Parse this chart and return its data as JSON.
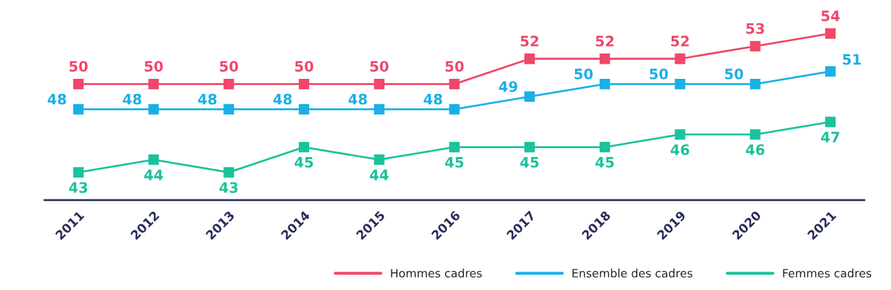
{
  "chart_data": {
    "type": "line",
    "categories": [
      "2011",
      "2012",
      "2013",
      "2014",
      "2015",
      "2016",
      "2017",
      "2018",
      "2019",
      "2020",
      "2021"
    ],
    "series": [
      {
        "name": "Hommes cadres",
        "color": "#f0476a",
        "values": [
          50,
          50,
          50,
          50,
          50,
          50,
          52,
          52,
          52,
          53,
          54
        ]
      },
      {
        "name": "Ensemble des cadres",
        "color": "#1ab0e6",
        "values": [
          48,
          48,
          48,
          48,
          48,
          48,
          49,
          50,
          50,
          50,
          51
        ]
      },
      {
        "name": "Femmes cadres",
        "color": "#1cc29c",
        "values": [
          43,
          44,
          43,
          45,
          44,
          45,
          45,
          45,
          46,
          46,
          47
        ]
      }
    ],
    "marker": "square",
    "line_style": "solid",
    "data_labels": true,
    "grid": false,
    "legend": "bottom",
    "tick_labels": "x"
  }
}
